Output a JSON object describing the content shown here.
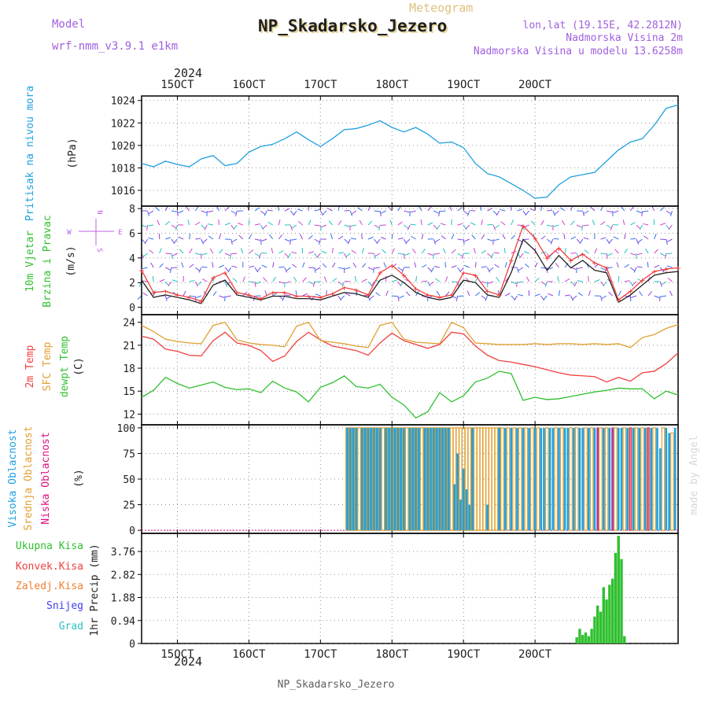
{
  "header": {
    "model_label": "Model",
    "model_name": "wrf-nmm_v3.9.1 e1km",
    "meteogram_label": "Meteogram",
    "title": "NP_Skadarsko_Jezero",
    "lonlat": "lon,lat (19.15E, 42.2812N)",
    "elevation": "Nadmorska Visina 2m",
    "model_elevation": "Nadmorska Visina u modelu 13.6258m",
    "footer_title": "NP_Skadarsko_Jezero",
    "watermark": "made by Angel"
  },
  "colors": {
    "pressure": "#1fa0e0",
    "temp2m": "#f04040",
    "sfctemp": "#e0a030",
    "dewpt": "#30c030",
    "high_cloud": "#1fa0e0",
    "mid_cloud": "#e0a030",
    "low_cloud": "#e01080",
    "precip": "#30c030",
    "wind_speed": "#202020",
    "wind_gust": "#f04040"
  },
  "chart_data": [
    {
      "type": "line",
      "panel": "pressure",
      "ylabel": [
        "Pritisak na nivou mora",
        "(hPa)"
      ],
      "x_ticks": [
        "15OCT",
        "16OCT",
        "17OCT",
        "18OCT",
        "19OCT",
        "20OCT"
      ],
      "top_year": "2024",
      "yticks": [
        "1024",
        "1022",
        "1020",
        "1018",
        "1016"
      ],
      "ylim": [
        1014.6,
        1024.4
      ],
      "x": [
        0,
        4,
        8,
        12,
        16,
        20,
        24,
        28,
        32,
        36,
        40,
        44,
        48,
        52,
        56,
        60,
        64,
        68,
        72,
        76,
        80,
        84,
        88,
        92,
        96,
        100,
        104,
        108,
        112,
        116,
        120,
        124,
        128,
        132,
        136,
        140,
        144,
        148,
        152,
        156,
        160,
        164,
        168,
        172,
        176,
        180
      ],
      "series": [
        {
          "values": [
            1018.4,
            1018.1,
            1018.6,
            1018.3,
            1018.1,
            1018.8,
            1019.1,
            1018.2,
            1018.4,
            1019.4,
            1019.9,
            1020.1,
            1020.6,
            1021.2,
            1020.5,
            1019.9,
            1020.6,
            1021.4,
            1021.5,
            1021.8,
            1022.2,
            1021.6,
            1021.2,
            1021.6,
            1021.0,
            1020.2,
            1020.3,
            1019.8,
            1018.4,
            1017.5,
            1017.2,
            1016.6,
            1016.0,
            1015.3,
            1015.4,
            1016.5,
            1017.2,
            1017.4,
            1017.6,
            1018.6,
            1019.6,
            1020.3,
            1020.6,
            1021.8,
            1023.3,
            1023.6
          ]
        }
      ]
    },
    {
      "type": "line",
      "panel": "wind",
      "ylabel": [
        "10m Vjetar",
        "Brzina i Pravac",
        "(m/s)"
      ],
      "compass": {
        "n": "N",
        "s": "S",
        "e": "E",
        "w": "W"
      },
      "yticks": [
        "8",
        "6",
        "4",
        "2",
        "0"
      ],
      "ylim": [
        -0.6,
        8.2
      ],
      "x": [
        0,
        4,
        8,
        12,
        16,
        20,
        24,
        28,
        32,
        36,
        40,
        44,
        48,
        52,
        56,
        60,
        64,
        68,
        72,
        76,
        80,
        84,
        88,
        92,
        96,
        100,
        104,
        108,
        112,
        116,
        120,
        124,
        128,
        132,
        136,
        140,
        144,
        148,
        152,
        156,
        160,
        164,
        168,
        172,
        176,
        180
      ],
      "series": [
        {
          "name": "speed",
          "values": [
            2.2,
            0.8,
            1.0,
            0.8,
            0.6,
            0.3,
            1.8,
            2.2,
            1.0,
            0.8,
            0.6,
            0.9,
            0.9,
            0.7,
            0.7,
            0.6,
            0.9,
            1.2,
            1.1,
            0.8,
            2.2,
            2.6,
            2.0,
            1.2,
            0.8,
            0.6,
            0.8,
            2.2,
            2.0,
            1.0,
            0.8,
            2.8,
            5.5,
            4.6,
            3.0,
            4.2,
            3.2,
            3.8,
            3.0,
            2.8,
            0.4,
            1.0,
            1.8,
            2.6,
            2.8,
            2.9
          ]
        },
        {
          "name": "gust",
          "values": [
            3.0,
            1.2,
            1.3,
            1.0,
            0.8,
            0.5,
            2.4,
            2.8,
            1.2,
            1.0,
            0.7,
            1.2,
            1.2,
            0.9,
            0.9,
            0.8,
            1.1,
            1.6,
            1.4,
            1.0,
            2.8,
            3.4,
            2.6,
            1.5,
            1.0,
            0.8,
            1.0,
            2.8,
            2.6,
            1.3,
            1.0,
            3.8,
            6.6,
            5.6,
            4.0,
            4.8,
            3.8,
            4.3,
            3.6,
            3.2,
            0.6,
            1.3,
            2.2,
            2.9,
            3.1,
            3.2
          ]
        }
      ]
    },
    {
      "type": "line",
      "panel": "temperature",
      "ylabel": [
        "2m Temp",
        "SFC Temp",
        "dewpt Temp",
        "(C)"
      ],
      "yticks": [
        "24",
        "21",
        "18",
        "15",
        "12"
      ],
      "ylim": [
        10.6,
        25.0
      ],
      "x": [
        0,
        4,
        8,
        12,
        16,
        20,
        24,
        28,
        32,
        36,
        40,
        44,
        48,
        52,
        56,
        60,
        64,
        68,
        72,
        76,
        80,
        84,
        88,
        92,
        96,
        100,
        104,
        108,
        112,
        116,
        120,
        124,
        128,
        132,
        136,
        140,
        144,
        148,
        152,
        156,
        160,
        164,
        168,
        172,
        176,
        180
      ],
      "series": [
        {
          "name": "2m Temp",
          "values": [
            22.2,
            21.8,
            20.5,
            20.2,
            19.7,
            19.6,
            21.6,
            22.7,
            21.3,
            21.0,
            20.3,
            18.9,
            19.6,
            21.5,
            22.7,
            21.7,
            20.9,
            20.6,
            20.3,
            19.7,
            21.3,
            22.6,
            21.6,
            21.1,
            20.6,
            21.1,
            22.7,
            22.5,
            20.9,
            19.7,
            19.0,
            18.8,
            18.5,
            18.2,
            17.8,
            17.4,
            17.1,
            17.0,
            16.9,
            16.2,
            16.8,
            16.3,
            17.4,
            17.6,
            18.6,
            20.0
          ]
        },
        {
          "name": "SFC Temp",
          "values": [
            23.6,
            22.8,
            21.8,
            21.5,
            21.3,
            21.2,
            23.6,
            24.0,
            21.7,
            21.3,
            21.1,
            21.0,
            20.8,
            23.5,
            24.0,
            21.6,
            21.4,
            21.2,
            20.9,
            20.7,
            23.6,
            24.0,
            21.8,
            21.4,
            21.3,
            21.2,
            24.0,
            23.3,
            21.3,
            21.2,
            21.1,
            21.1,
            21.1,
            21.2,
            21.1,
            21.2,
            21.2,
            21.1,
            21.2,
            21.1,
            21.2,
            20.7,
            22.0,
            22.4,
            23.2,
            23.7
          ]
        },
        {
          "name": "dewpt Temp",
          "values": [
            14.2,
            15.1,
            16.8,
            16.0,
            15.4,
            15.8,
            16.2,
            15.5,
            15.2,
            15.3,
            14.8,
            16.3,
            15.4,
            14.9,
            13.6,
            15.5,
            16.1,
            17.0,
            15.6,
            15.4,
            15.9,
            14.2,
            13.2,
            11.5,
            12.3,
            14.8,
            13.6,
            14.4,
            16.2,
            16.7,
            17.6,
            17.3,
            13.8,
            14.2,
            13.9,
            14.0,
            14.3,
            14.6,
            14.9,
            15.1,
            15.4,
            15.3,
            15.3,
            14.0,
            15.0,
            14.5
          ]
        }
      ]
    },
    {
      "type": "bar",
      "panel": "clouds",
      "ylabel": [
        "Visoka Oblacnost",
        "Srednja Oblacnost",
        "Niska Oblacnost",
        "(%)"
      ],
      "yticks": [
        "100",
        "75",
        "50",
        "25",
        "0"
      ],
      "ylim": [
        -3,
        103
      ],
      "high_hours": [
        69,
        70,
        71,
        72,
        74,
        75,
        76,
        77,
        78,
        79,
        80,
        82,
        83,
        84,
        85,
        86,
        87,
        88,
        90,
        91,
        92,
        93,
        95,
        96,
        97,
        98,
        99,
        100,
        101,
        102,
        103,
        105,
        106,
        107,
        108,
        109,
        110,
        111,
        116,
        120,
        122,
        124,
        126,
        128,
        130,
        132,
        134,
        135,
        137,
        138,
        140,
        142,
        143,
        145,
        147,
        148,
        150,
        152,
        153,
        155,
        157,
        158,
        160,
        161,
        163,
        165,
        167,
        169,
        171,
        173,
        174,
        176,
        177,
        179
      ],
      "high_values": [
        100,
        100,
        100,
        100,
        100,
        100,
        100,
        100,
        100,
        100,
        100,
        100,
        100,
        100,
        100,
        100,
        100,
        100,
        100,
        100,
        100,
        100,
        100,
        100,
        100,
        100,
        100,
        100,
        100,
        100,
        100,
        45,
        75,
        30,
        60,
        40,
        25,
        100,
        25,
        100,
        100,
        100,
        100,
        100,
        100,
        100,
        100,
        100,
        100,
        100,
        100,
        100,
        100,
        100,
        100,
        100,
        100,
        100,
        100,
        100,
        100,
        100,
        100,
        100,
        100,
        100,
        100,
        100,
        100,
        100,
        80,
        100,
        95,
        100
      ],
      "mid_hours": [
        69,
        70,
        71,
        72,
        73,
        74,
        75,
        76,
        77,
        78,
        79,
        80,
        81,
        82,
        83,
        84,
        85,
        86,
        87,
        88,
        89,
        90,
        91,
        92,
        93,
        94,
        95,
        96,
        97,
        98,
        99,
        100,
        101,
        102,
        103,
        104,
        105,
        106,
        107,
        108,
        109,
        110,
        111,
        112,
        113,
        114,
        115,
        116,
        117,
        118,
        119,
        120,
        121,
        123,
        125,
        127,
        129,
        131,
        133,
        136,
        139,
        141,
        144,
        146,
        149,
        151,
        154,
        156,
        159,
        162,
        164,
        166,
        168,
        170,
        172,
        175,
        178
      ],
      "mid_values": [
        100,
        100,
        100,
        100,
        100,
        100,
        100,
        100,
        100,
        100,
        100,
        100,
        100,
        100,
        100,
        100,
        100,
        100,
        100,
        100,
        100,
        100,
        100,
        100,
        100,
        100,
        100,
        100,
        100,
        100,
        100,
        100,
        100,
        100,
        100,
        100,
        100,
        100,
        100,
        100,
        100,
        100,
        100,
        100,
        100,
        100,
        100,
        100,
        100,
        100,
        100,
        100,
        100,
        100,
        100,
        100,
        100,
        100,
        100,
        100,
        100,
        100,
        100,
        100,
        100,
        100,
        100,
        100,
        100,
        100,
        100,
        100,
        100,
        100,
        100,
        100,
        95
      ],
      "low_hours": [
        153,
        158,
        164,
        170
      ],
      "low_values": [
        100,
        100,
        100,
        100
      ]
    },
    {
      "type": "bar",
      "panel": "precip",
      "ylabel": [
        "1hr Precip (mm)"
      ],
      "legend": [
        "Ukupna Kisa",
        "Konvek.Kisa",
        "Zaledj.Kisa",
        "Snijeg",
        "Grad"
      ],
      "legend_colors": [
        "#30c030",
        "#f04040",
        "#f08030",
        "#4040f0",
        "#30c0c0"
      ],
      "yticks": [
        "3.76",
        "2.82",
        "1.88",
        "0.94",
        "0"
      ],
      "ylim": [
        0,
        4.5
      ],
      "x_ticks": [
        "15OCT",
        "16OCT",
        "17OCT",
        "18OCT",
        "19OCT",
        "20OCT"
      ],
      "bottom_year": "2024",
      "hours": [
        146,
        147,
        148,
        149,
        150,
        151,
        152,
        153,
        154,
        155,
        156,
        157,
        158,
        159,
        160,
        161,
        162,
        163,
        164,
        165
      ],
      "values": [
        0.25,
        0.6,
        0.35,
        0.45,
        0.3,
        0.6,
        1.1,
        1.55,
        1.3,
        2.3,
        1.8,
        2.4,
        2.65,
        3.7,
        4.4,
        3.45,
        0.3,
        0,
        0,
        0
      ]
    }
  ]
}
